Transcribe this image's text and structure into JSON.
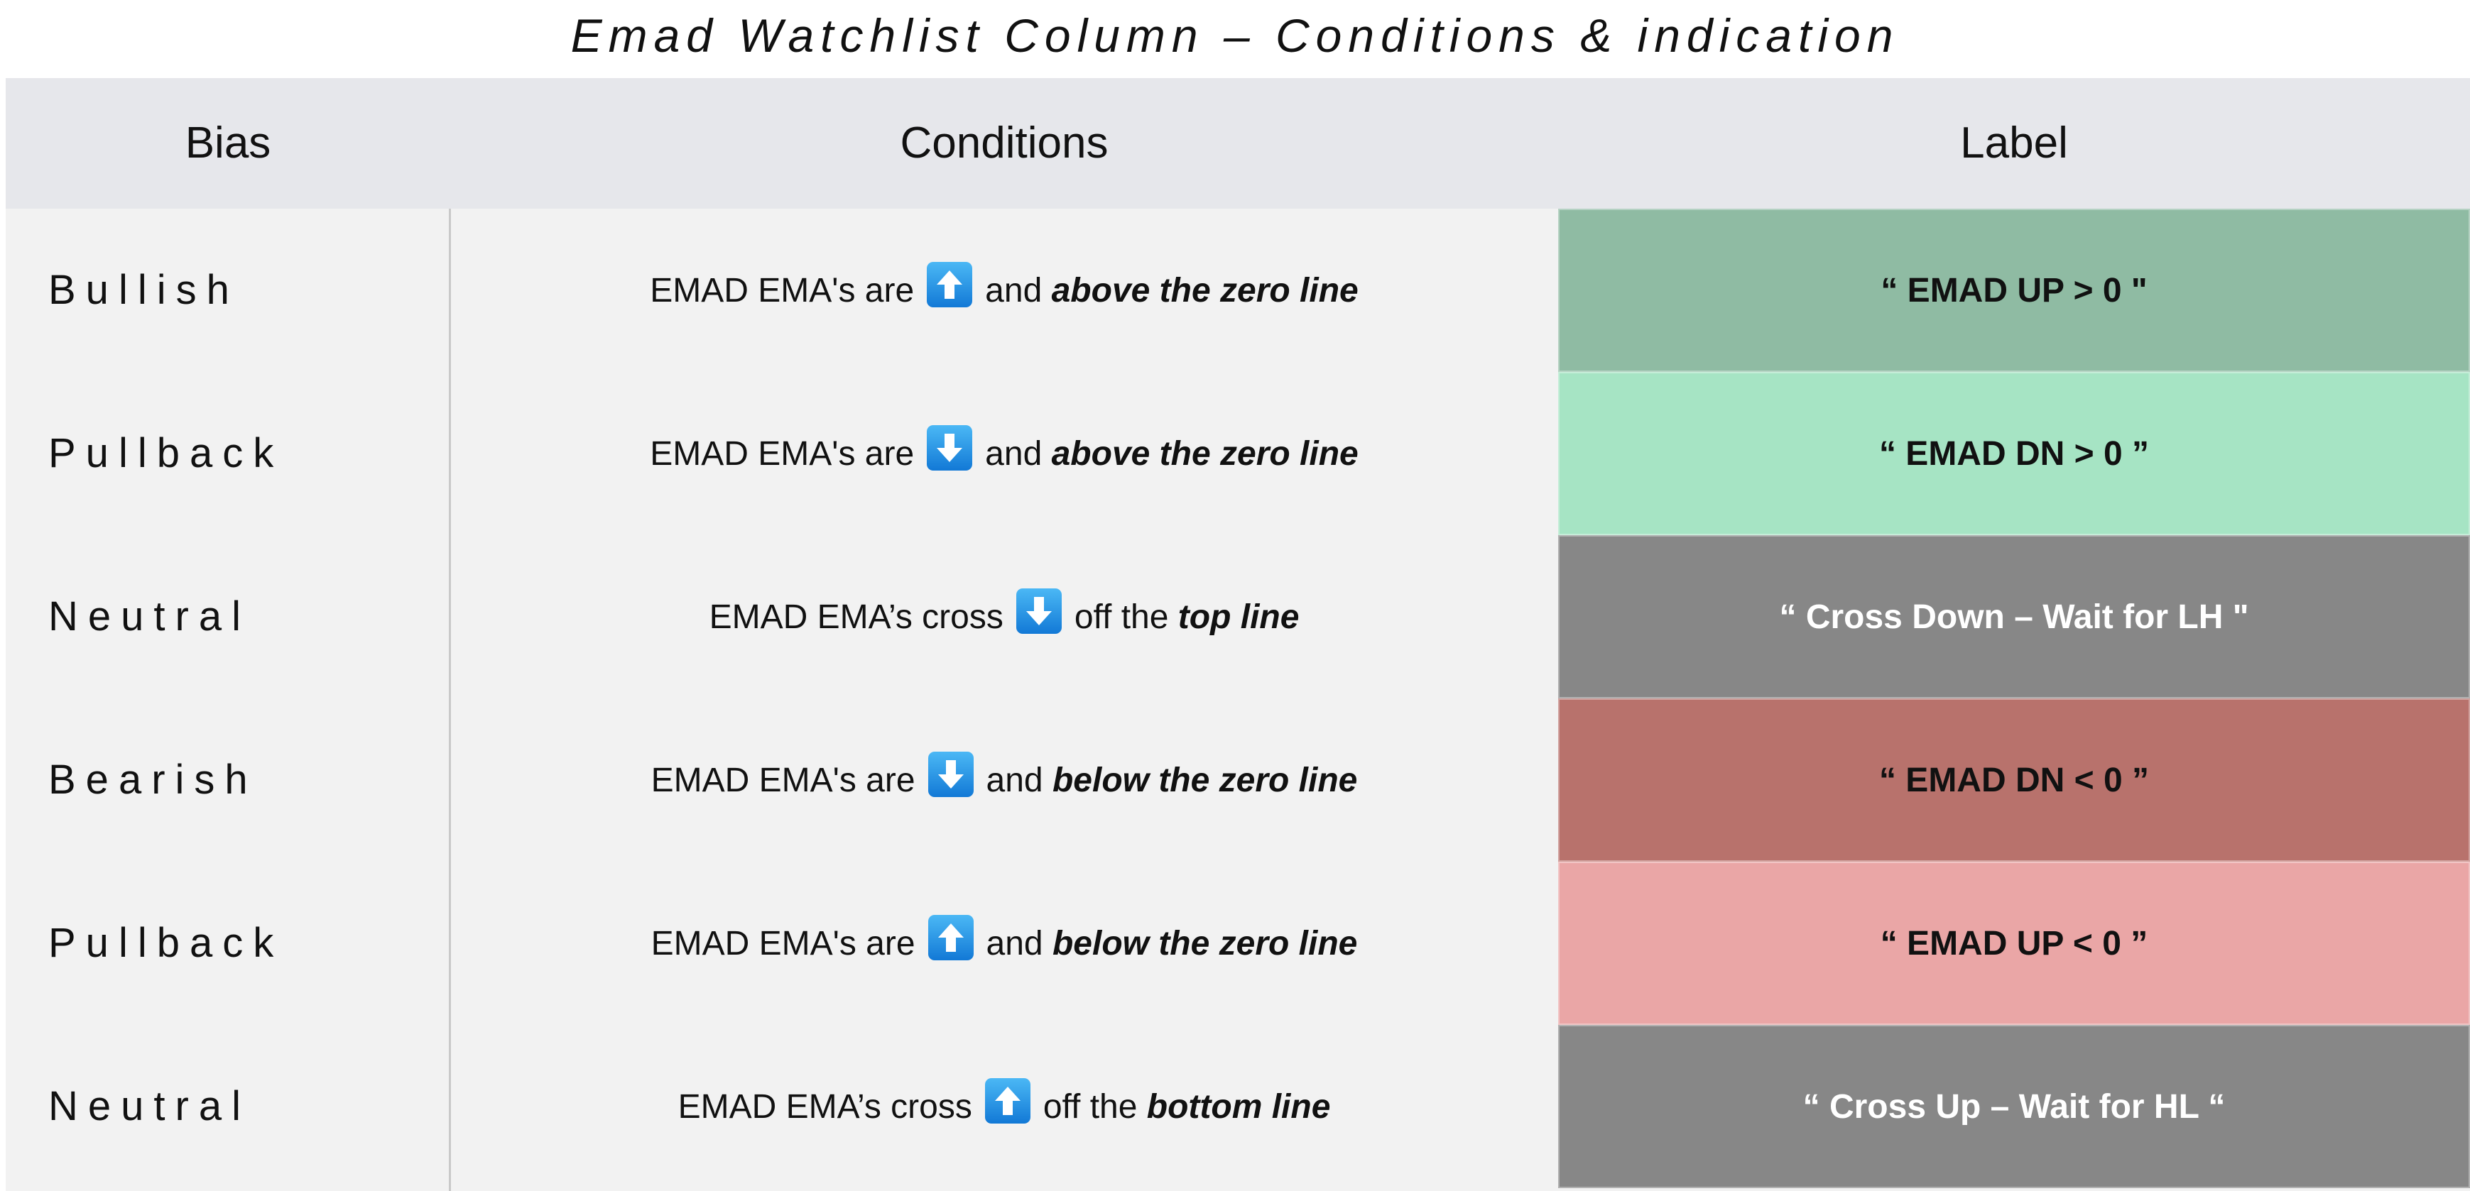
{
  "title": "Emad Watchlist Column – Conditions & indication",
  "headers": {
    "bias": "Bias",
    "conditions": "Conditions",
    "label": "Label"
  },
  "rows": [
    {
      "bias": "Bullish",
      "pre": "EMAD EMA's are",
      "arrow": "up-arrow-icon",
      "mid": "and",
      "emph": "above the zero line",
      "label": "“ EMAD UP > 0 \"",
      "label_bg": "#8fbba3",
      "label_color": "#111111"
    },
    {
      "bias": "Pullback",
      "pre": "EMAD EMA's are",
      "arrow": "down-arrow-icon",
      "mid": "and",
      "emph": "above the zero line",
      "label": "“ EMAD DN > 0 ”",
      "label_bg": "#a6e4c4",
      "label_color": "#111111"
    },
    {
      "bias": "Neutral",
      "pre": "EMAD EMA’s cross",
      "arrow": "down-arrow-icon",
      "mid": "off the",
      "emph": "top line",
      "label": "“ Cross Down – Wait for LH \"",
      "label_bg": "#878787",
      "label_color": "#ffffff"
    },
    {
      "bias": "Bearish",
      "pre": "EMAD EMA's are",
      "arrow": "down-arrow-icon",
      "mid": "and",
      "emph": "below the zero line",
      "label": "“ EMAD DN < 0 ”",
      "label_bg": "#b8726c",
      "label_color": "#111111"
    },
    {
      "bias": "Pullback",
      "pre": "EMAD EMA's are",
      "arrow": "up-arrow-icon",
      "mid": "and",
      "emph": "below the zero line",
      "label": "“ EMAD UP < 0 ”",
      "label_bg": "#eaa6a6",
      "label_color": "#111111"
    },
    {
      "bias": "Neutral",
      "pre": "EMAD EMA’s cross",
      "arrow": "up-arrow-icon",
      "mid": "off the",
      "emph": "bottom line",
      "label": "“ Cross Up – Wait for HL “",
      "label_bg": "#878787",
      "label_color": "#ffffff"
    }
  ]
}
